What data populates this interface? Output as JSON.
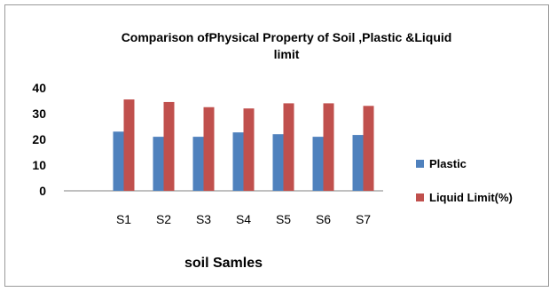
{
  "chart_data": {
    "type": "bar",
    "title_lines": [
      "Comparison ofPhysical Property of Soil ,Plastic &Liquid",
      "limit"
    ],
    "categories": [
      "S1",
      "S2",
      "S3",
      "S4",
      "S5",
      "S6",
      "S7"
    ],
    "series": [
      {
        "name": "Plastic",
        "color": "#4f81bd",
        "values": [
          23,
          21,
          21,
          22.7,
          22,
          21,
          21.7
        ]
      },
      {
        "name": "Liquid Limit(%)",
        "color": "#c0504d",
        "values": [
          35.5,
          34.5,
          32.5,
          32,
          34,
          34,
          33
        ]
      }
    ],
    "xlabel": "soil Samles",
    "ylabel": "",
    "ylim": [
      0,
      40
    ],
    "yticks": [
      0,
      10,
      20,
      30,
      40
    ],
    "grid": false,
    "legend_position": "right"
  }
}
